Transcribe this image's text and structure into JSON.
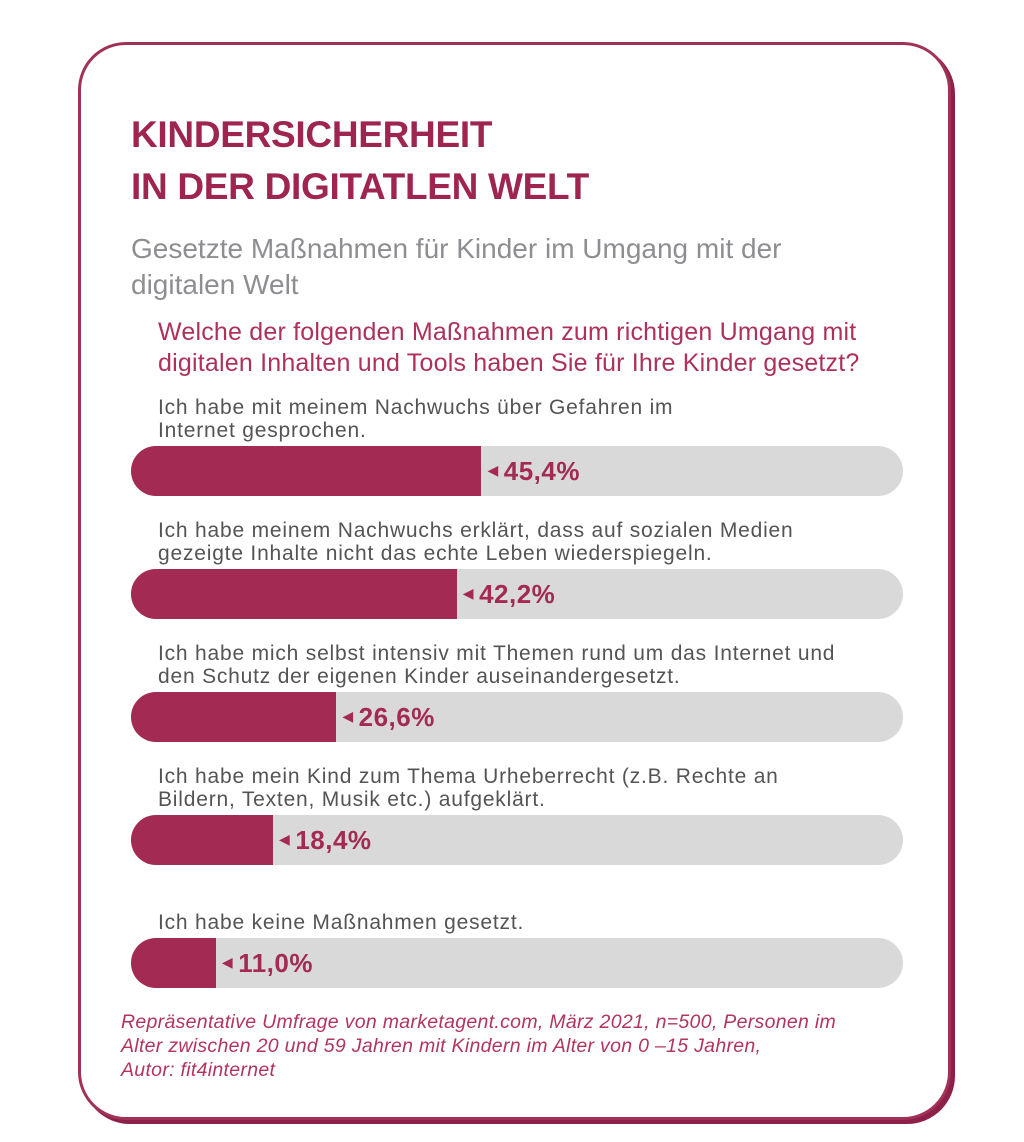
{
  "colors": {
    "accent_dark": "#9e2550",
    "accent": "#a32b53",
    "accent_bright": "#ad3159",
    "track_gray": "#d9d9da",
    "subtitle_gray": "#8e8e92",
    "label_gray": "#545456",
    "card_background": "#ffffff",
    "card_border": "#a23158"
  },
  "header": {
    "title": "KINDERSICHERHEIT\nIN DER DIGITATLEN WELT",
    "subtitle": "Gesetzte Maßnahmen für Kinder im Umgang mit der\ndigitalen Welt",
    "question": "Welche der folgenden Maßnahmen zum richtigen Umgang mit\ndigitalen Inhalten und Tools haben Sie für Ihre Kinder gesetzt?"
  },
  "chart_data": {
    "type": "bar",
    "orientation": "horizontal",
    "title": "Gesetzte Maßnahmen für Kinder im Umgang mit der digitalen Welt",
    "question": "Welche der folgenden Maßnahmen zum richtigen Umgang mit digitalen Inhalten und Tools haben Sie für Ihre Kinder gesetzt?",
    "categories": [
      "Ich habe mit meinem Nachwuchs über Gefahren im\nInternet gesprochen.",
      "Ich habe meinem Nachwuchs erklärt, dass auf sozialen Medien\ngezeigte Inhalte nicht das echte Leben wiederspiegeln.",
      "Ich habe mich selbst intensiv mit Themen rund um das Internet und\nden Schutz der eigenen Kinder auseinandergesetzt.",
      "Ich habe mein Kind zum Thema Urheberrecht (z.B. Rechte an\nBildern, Texten, Musik etc.) aufgeklärt.",
      "Ich habe keine Maßnahmen gesetzt."
    ],
    "values": [
      45.4,
      42.2,
      26.6,
      18.4,
      11.0
    ],
    "value_labels": [
      "45,4%",
      "42,2%",
      "26,6%",
      "18,4%",
      "11,0%"
    ],
    "value_marker": "◀",
    "unit": "%",
    "xlim": [
      0,
      100
    ],
    "grid": false,
    "legend": false,
    "bar_color": "#a32b53",
    "track_color": "#d9d9da"
  },
  "footer": {
    "source": "Repräsentative Umfrage von marketagent.com, März 2021, n=500, Personen im\nAlter zwischen 20 und 59 Jahren mit Kindern im Alter von 0 –15 Jahren,\nAutor: fit4internet"
  }
}
